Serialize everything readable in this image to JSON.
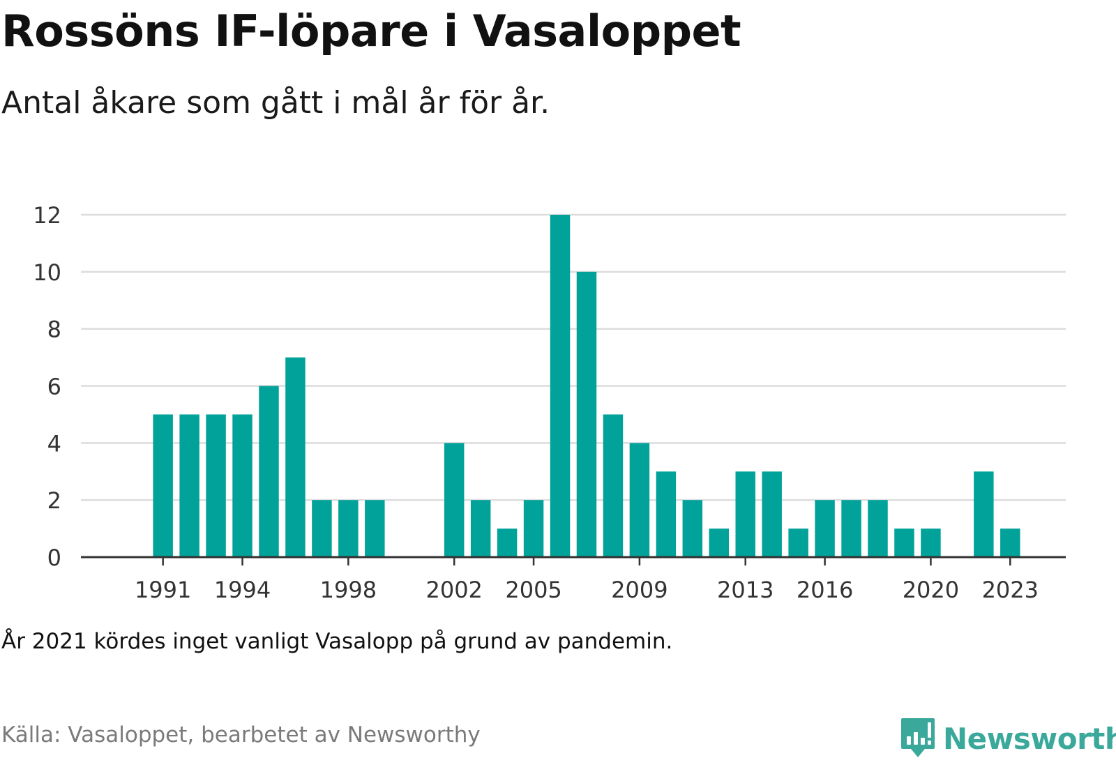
{
  "header": {
    "title": "Rossöns IF-löpare i Vasaloppet",
    "subtitle": "Antal åkare som gått i mål år för år."
  },
  "footer": {
    "note": "År 2021 kördes inget vanligt Vasalopp på grund av pandemin.",
    "source": "Källa: Vasaloppet, bearbetet av Newsworthy",
    "brand_name": "Newsworthy"
  },
  "colors": {
    "bar": "#00a29a",
    "brand": "#3aa89a",
    "grid": "#dcdcdc",
    "axis": "#333333"
  },
  "chart_data": {
    "type": "bar",
    "title": "Rossöns IF-löpare i Vasaloppet",
    "subtitle": "Antal åkare som gått i mål år för år.",
    "x": [
      1991,
      1992,
      1993,
      1994,
      1995,
      1996,
      1997,
      1998,
      1999,
      2002,
      2003,
      2004,
      2005,
      2006,
      2007,
      2008,
      2009,
      2010,
      2011,
      2012,
      2013,
      2014,
      2015,
      2016,
      2017,
      2018,
      2019,
      2020,
      2022,
      2023
    ],
    "values": [
      5,
      5,
      5,
      5,
      6,
      7,
      2,
      2,
      2,
      4,
      2,
      1,
      2,
      12,
      10,
      5,
      4,
      3,
      2,
      1,
      3,
      3,
      1,
      2,
      2,
      2,
      1,
      1,
      3,
      1
    ],
    "x_range": [
      1987.9,
      2025.1
    ],
    "ylim": [
      0,
      12
    ],
    "y_ticks": [
      0,
      2,
      4,
      6,
      8,
      10,
      12
    ],
    "x_ticks": [
      1991,
      1994,
      1998,
      2002,
      2005,
      2009,
      2013,
      2016,
      2020,
      2023
    ],
    "grid": true,
    "legend": "none",
    "xlabel": "",
    "ylabel": ""
  }
}
